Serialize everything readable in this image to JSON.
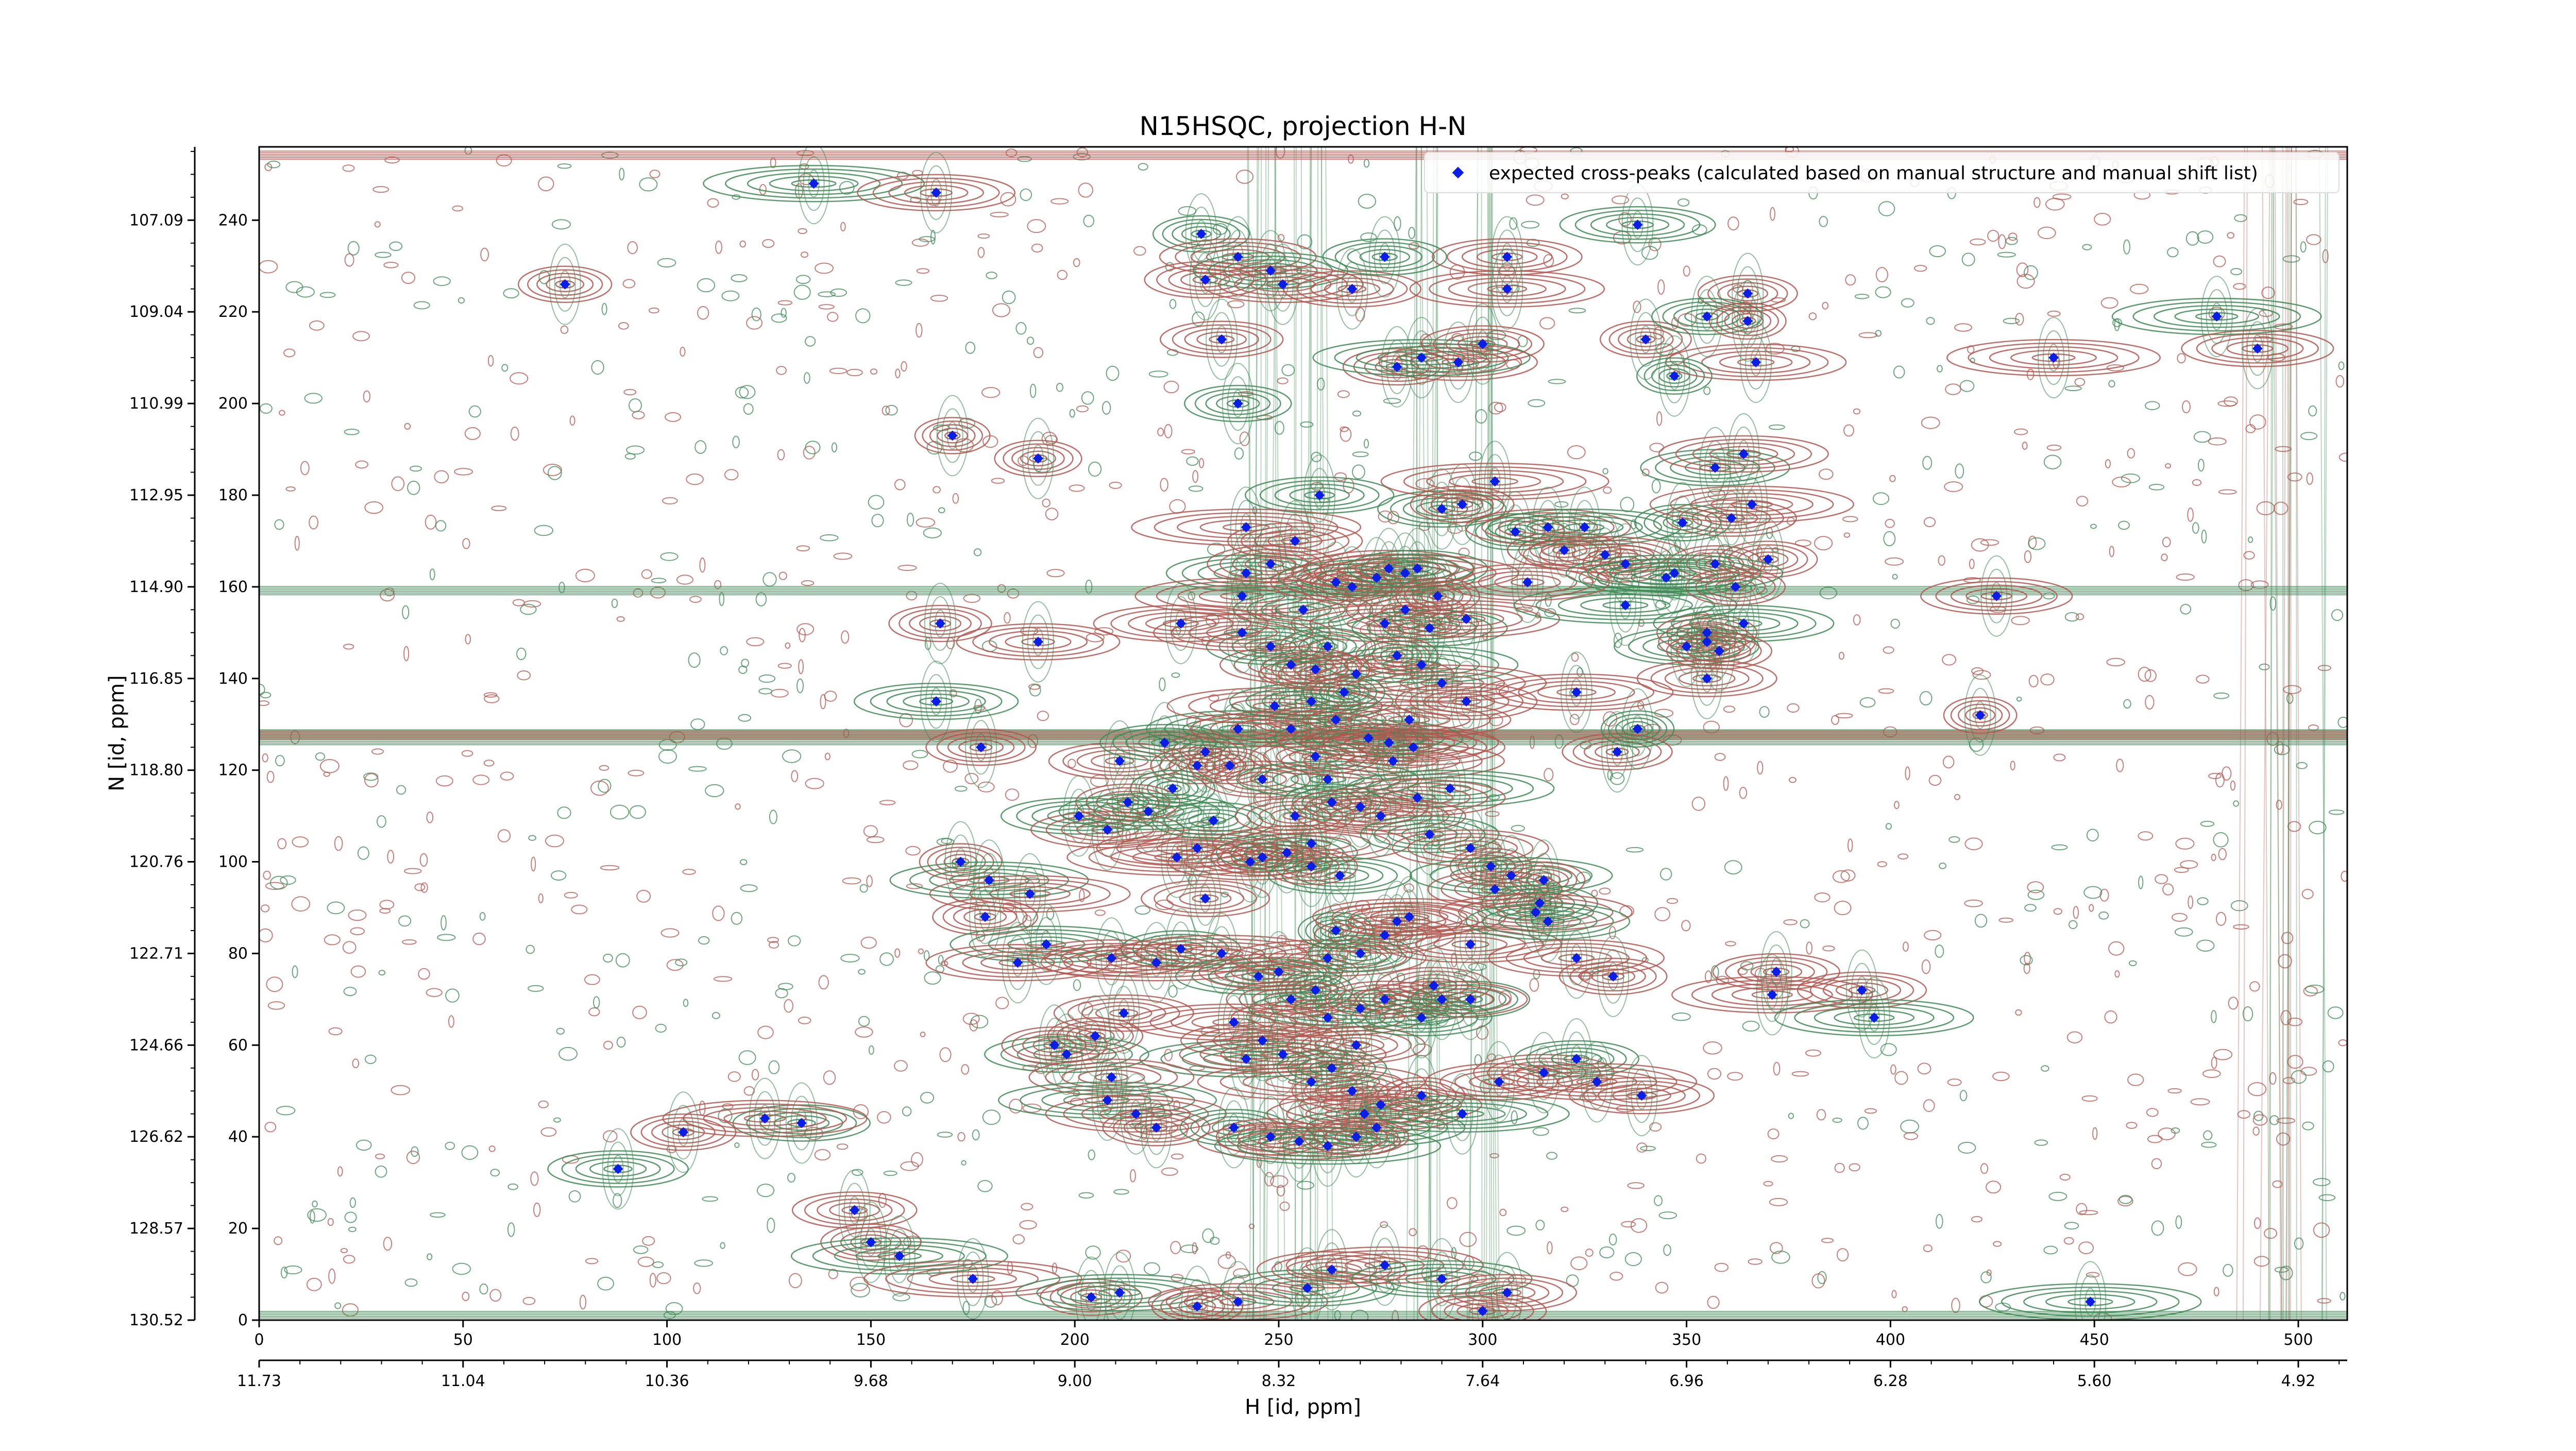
{
  "chart_data": {
    "type": "scatter",
    "title": "N15HSQC, projection H-N",
    "xlabel": "H [id, ppm]",
    "ylabel": "N [id, ppm]",
    "x_index_ticks": [
      "0",
      "50",
      "100",
      "150",
      "200",
      "250",
      "300",
      "350",
      "400",
      "450",
      "500"
    ],
    "x_ppm_ticks": [
      "11.73",
      "11.04",
      "10.36",
      "9.68",
      "9.00",
      "8.32",
      "7.64",
      "6.96",
      "6.28",
      "5.60",
      "4.92"
    ],
    "y_index_ticks": [
      "0",
      "20",
      "40",
      "60",
      "80",
      "100",
      "120",
      "140",
      "160",
      "180",
      "200",
      "220",
      "240"
    ],
    "y_ppm_ticks": [
      "130.52",
      "128.57",
      "126.62",
      "124.66",
      "122.71",
      "120.76",
      "118.80",
      "116.85",
      "114.90",
      "112.95",
      "110.99",
      "109.04",
      "107.09"
    ],
    "xlim": [
      0,
      512
    ],
    "ylim": [
      0,
      256
    ],
    "legend": {
      "location": "top-right",
      "label": "expected cross-peaks (calculated based on manual structure and manual shift list)"
    },
    "colors": {
      "positive_contour": "#b5554f",
      "negative_contour": "#3e8a55",
      "peak_marker": "#0a1ee6",
      "horizontal_streak": "#c96a5e"
    },
    "series": [
      {
        "name": "expected cross-peaks (calculated based on manual structure and manual shift list)",
        "points": [
          [
            136,
            248
          ],
          [
            166,
            246
          ],
          [
            75,
            226
          ],
          [
            231,
            237
          ],
          [
            240,
            232
          ],
          [
            232,
            227
          ],
          [
            248,
            229
          ],
          [
            251,
            226
          ],
          [
            268,
            225
          ],
          [
            276,
            232
          ],
          [
            306,
            232
          ],
          [
            306,
            225
          ],
          [
            338,
            239
          ],
          [
            365,
            224
          ],
          [
            236,
            214
          ],
          [
            240,
            200
          ],
          [
            294,
            209
          ],
          [
            279,
            208
          ],
          [
            285,
            210
          ],
          [
            300,
            213
          ],
          [
            340,
            214
          ],
          [
            355,
            219
          ],
          [
            365,
            218
          ],
          [
            367,
            209
          ],
          [
            347,
            206
          ],
          [
            170,
            193
          ],
          [
            191,
            188
          ],
          [
            260,
            180
          ],
          [
            242,
            173
          ],
          [
            254,
            170
          ],
          [
            242,
            163
          ],
          [
            248,
            165
          ],
          [
            241,
            158
          ],
          [
            256,
            155
          ],
          [
            264,
            161
          ],
          [
            268,
            160
          ],
          [
            274,
            162
          ],
          [
            277,
            164
          ],
          [
            281,
            163
          ],
          [
            284,
            164
          ],
          [
            281,
            155
          ],
          [
            276,
            152
          ],
          [
            287,
            151
          ],
          [
            289,
            158
          ],
          [
            296,
            153
          ],
          [
            290,
            177
          ],
          [
            295,
            178
          ],
          [
            303,
            183
          ],
          [
            308,
            172
          ],
          [
            316,
            173
          ],
          [
            320,
            168
          ],
          [
            325,
            173
          ],
          [
            330,
            167
          ],
          [
            335,
            165
          ],
          [
            345,
            162
          ],
          [
            357,
            165
          ],
          [
            361,
            175
          ],
          [
            357,
            186
          ],
          [
            364,
            189
          ],
          [
            370,
            166
          ],
          [
            349,
            174
          ],
          [
            366,
            178
          ],
          [
            323,
            137
          ],
          [
            335,
            156
          ],
          [
            311,
            161
          ],
          [
            355,
            150
          ],
          [
            364,
            152
          ],
          [
            362,
            160
          ],
          [
            355,
            148
          ],
          [
            350,
            147
          ],
          [
            358,
            146
          ],
          [
            355,
            140
          ],
          [
            347,
            163
          ],
          [
            167,
            152
          ],
          [
            191,
            148
          ],
          [
            166,
            135
          ],
          [
            177,
            125
          ],
          [
            211,
            122
          ],
          [
            222,
            126
          ],
          [
            232,
            124
          ],
          [
            230,
            121
          ],
          [
            224,
            116
          ],
          [
            238,
            121
          ],
          [
            246,
            118
          ],
          [
            240,
            129
          ],
          [
            249,
            134
          ],
          [
            253,
            129
          ],
          [
            258,
            135
          ],
          [
            264,
            131
          ],
          [
            259,
            123
          ],
          [
            262,
            118
          ],
          [
            278,
            122
          ],
          [
            283,
            125
          ],
          [
            292,
            116
          ],
          [
            284,
            114
          ],
          [
            333,
            124
          ],
          [
            338,
            129
          ],
          [
            426,
            158
          ],
          [
            422,
            132
          ],
          [
            480,
            219
          ],
          [
            490,
            212
          ],
          [
            440,
            210
          ],
          [
            201,
            110
          ],
          [
            208,
            107
          ],
          [
            213,
            113
          ],
          [
            218,
            111
          ],
          [
            225,
            101
          ],
          [
            230,
            103
          ],
          [
            234,
            109
          ],
          [
            243,
            100
          ],
          [
            246,
            101
          ],
          [
            252,
            102
          ],
          [
            258,
            104
          ],
          [
            254,
            110
          ],
          [
            263,
            113
          ],
          [
            270,
            112
          ],
          [
            275,
            110
          ],
          [
            287,
            106
          ],
          [
            297,
            103
          ],
          [
            302,
            99
          ],
          [
            307,
            97
          ],
          [
            315,
            96
          ],
          [
            303,
            94
          ],
          [
            314,
            91
          ],
          [
            313,
            89
          ],
          [
            172,
            100
          ],
          [
            179,
            96
          ],
          [
            189,
            93
          ],
          [
            178,
            88
          ],
          [
            193,
            82
          ],
          [
            186,
            78
          ],
          [
            209,
            79
          ],
          [
            226,
            81
          ],
          [
            220,
            78
          ],
          [
            236,
            80
          ],
          [
            245,
            75
          ],
          [
            250,
            76
          ],
          [
            262,
            79
          ],
          [
            270,
            80
          ],
          [
            276,
            84
          ],
          [
            279,
            87
          ],
          [
            259,
            72
          ],
          [
            253,
            70
          ],
          [
            262,
            66
          ],
          [
            270,
            68
          ],
          [
            276,
            70
          ],
          [
            288,
            73
          ],
          [
            297,
            70
          ],
          [
            239,
            65
          ],
          [
            246,
            61
          ],
          [
            242,
            57
          ],
          [
            251,
            58
          ],
          [
            258,
            52
          ],
          [
            263,
            55
          ],
          [
            268,
            50
          ],
          [
            275,
            47
          ],
          [
            274,
            42
          ],
          [
            271,
            45
          ],
          [
            285,
            49
          ],
          [
            295,
            45
          ],
          [
            304,
            52
          ],
          [
            315,
            54
          ],
          [
            323,
            57
          ],
          [
            212,
            67
          ],
          [
            205,
            62
          ],
          [
            198,
            58
          ],
          [
            195,
            60
          ],
          [
            209,
            53
          ],
          [
            208,
            48
          ],
          [
            215,
            45
          ],
          [
            220,
            42
          ],
          [
            239,
            42
          ],
          [
            248,
            40
          ],
          [
            255,
            39
          ],
          [
            262,
            38
          ],
          [
            269,
            40
          ],
          [
            371,
            71
          ],
          [
            133,
            43
          ],
          [
            124,
            44
          ],
          [
            104,
            41
          ],
          [
            88,
            33
          ],
          [
            146,
            24
          ],
          [
            150,
            17
          ],
          [
            157,
            14
          ],
          [
            175,
            9
          ],
          [
            204,
            5
          ],
          [
            211,
            6
          ],
          [
            230,
            3
          ],
          [
            240,
            4
          ],
          [
            257,
            7
          ],
          [
            263,
            11
          ],
          [
            276,
            12
          ],
          [
            290,
            9
          ],
          [
            300,
            2
          ],
          [
            306,
            6
          ],
          [
            449,
            4
          ],
          [
            372,
            76
          ],
          [
            393,
            72
          ],
          [
            396,
            66
          ],
          [
            269,
            60
          ],
          [
            232,
            92
          ],
          [
            264,
            85
          ],
          [
            282,
            88
          ],
          [
            297,
            82
          ],
          [
            316,
            87
          ],
          [
            323,
            79
          ],
          [
            332,
            75
          ],
          [
            265,
            97
          ],
          [
            258,
            99
          ],
          [
            290,
            70
          ],
          [
            285,
            66
          ],
          [
            328,
            52
          ],
          [
            339,
            49
          ],
          [
            262,
            147
          ],
          [
            269,
            141
          ],
          [
            279,
            145
          ],
          [
            285,
            143
          ],
          [
            290,
            139
          ],
          [
            296,
            135
          ],
          [
            272,
            127
          ],
          [
            277,
            126
          ],
          [
            282,
            131
          ],
          [
            266,
            137
          ],
          [
            259,
            142
          ],
          [
            253,
            143
          ],
          [
            248,
            147
          ],
          [
            241,
            150
          ],
          [
            226,
            152
          ]
        ]
      }
    ]
  }
}
